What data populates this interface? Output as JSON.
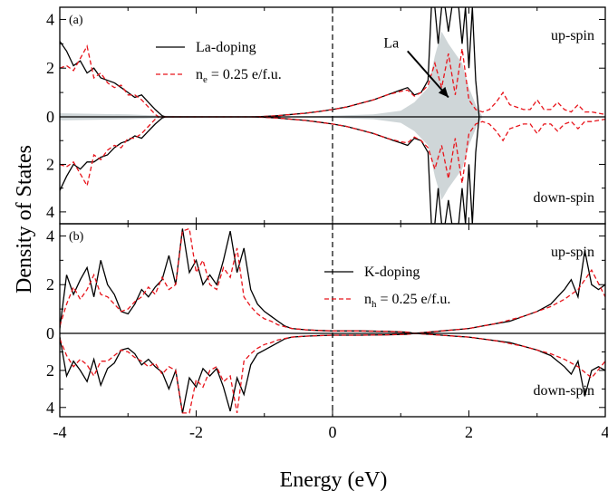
{
  "chart_data": {
    "type": "line",
    "xlabel": "Energy (eV)",
    "ylabel": "Density of States",
    "xlim": [
      -4,
      4
    ],
    "x_ticks": [
      "-4",
      "-2",
      "0",
      "2",
      "4"
    ],
    "y_ticks_top": [
      "4",
      "2",
      "0",
      "2",
      "4"
    ],
    "y_ticks_bottom": [
      "4",
      "2",
      "0",
      "2",
      "4"
    ],
    "fermi_level": 0,
    "colors": {
      "solid": "#000000",
      "dashed": "#e8141b",
      "shade": "#cfd6d8"
    },
    "panels": [
      {
        "label": "(a)",
        "ylim_up": [
          0,
          4.5
        ],
        "ylim_down": [
          0,
          4.5
        ],
        "legend": [
          {
            "name": "La-doping"
          },
          {
            "name_main": "n",
            "name_sub": "e",
            "name_rest": " = 0.25 e/f.u."
          }
        ],
        "annotations": {
          "up": "up-spin",
          "down": "down-spin",
          "arrow_label": "La",
          "arrow_from": [
            1.1,
            2.7
          ],
          "arrow_to": [
            1.7,
            0.8
          ]
        },
        "series": [
          {
            "name": "La-doping",
            "style": "solid",
            "x": [
              -4,
              -3.9,
              -3.8,
              -3.7,
              -3.6,
              -3.5,
              -3.4,
              -3.3,
              -3.2,
              -3.1,
              -3.0,
              -2.9,
              -2.8,
              -2.7,
              -2.6,
              -2.5,
              -2.45,
              -1.2,
              -1.0,
              -0.8,
              -0.6,
              -0.4,
              -0.2,
              0,
              0.2,
              0.4,
              0.6,
              0.8,
              0.9,
              1.0,
              1.1,
              1.2,
              1.3,
              1.4,
              1.45,
              1.5,
              1.55,
              1.6,
              1.65,
              1.7,
              1.75,
              1.8,
              1.85,
              1.9,
              1.95,
              2.0,
              2.05,
              2.1,
              2.15
            ],
            "up": [
              3.1,
              2.7,
              2.1,
              2.3,
              1.8,
              2.0,
              1.6,
              1.5,
              1.4,
              1.2,
              1.0,
              0.8,
              0.9,
              0.6,
              0.3,
              0.05,
              0,
              0,
              0.02,
              0.05,
              0.1,
              0.15,
              0.22,
              0.3,
              0.4,
              0.55,
              0.7,
              0.9,
              1.0,
              1.1,
              1.2,
              0.9,
              1.0,
              1.5,
              4.5,
              4.5,
              3.0,
              4.5,
              4.5,
              3.5,
              4.5,
              4.5,
              4.5,
              3.0,
              4.5,
              2.0,
              4.5,
              1.5,
              0
            ],
            "down": [
              3.1,
              2.5,
              2.0,
              2.2,
              1.9,
              1.9,
              1.7,
              1.6,
              1.3,
              1.1,
              1.0,
              0.8,
              0.9,
              0.6,
              0.3,
              0.05,
              0,
              0,
              0.02,
              0.05,
              0.1,
              0.15,
              0.22,
              0.3,
              0.4,
              0.55,
              0.7,
              0.9,
              1.0,
              1.1,
              1.2,
              0.9,
              1.0,
              1.5,
              4.5,
              4.5,
              3.0,
              4.5,
              4.5,
              3.5,
              4.5,
              4.5,
              4.5,
              3.0,
              4.5,
              2.0,
              4.5,
              1.5,
              0
            ]
          },
          {
            "name_main": "n",
            "name_sub": "e",
            "name_rest": " = 0.25 e/f.u.",
            "style": "dashed",
            "x": [
              -4,
              -3.9,
              -3.8,
              -3.7,
              -3.6,
              -3.5,
              -3.4,
              -3.3,
              -3.2,
              -3.1,
              -3.0,
              -2.9,
              -2.8,
              -2.7,
              -2.6,
              -2.55,
              -1.2,
              -1.0,
              -0.8,
              -0.6,
              -0.4,
              -0.2,
              0,
              0.2,
              0.4,
              0.6,
              0.8,
              1.0,
              1.1,
              1.2,
              1.3,
              1.4,
              1.5,
              1.6,
              1.7,
              1.8,
              1.9,
              2.0,
              2.1,
              2.2,
              2.3,
              2.4,
              2.5,
              2.6,
              2.7,
              2.8,
              2.9,
              3.0,
              3.1,
              3.2,
              3.3,
              3.4,
              3.5,
              3.6,
              3.7,
              3.8,
              3.9,
              4.0
            ],
            "up": [
              2.0,
              2.1,
              1.9,
              2.4,
              2.9,
              1.6,
              1.8,
              1.4,
              1.2,
              1.3,
              0.9,
              0.9,
              0.7,
              0.4,
              0.1,
              0,
              0,
              0.02,
              0.05,
              0.1,
              0.15,
              0.22,
              0.3,
              0.4,
              0.55,
              0.7,
              0.9,
              1.05,
              1.1,
              0.85,
              1.0,
              1.3,
              2.2,
              1.2,
              2.6,
              0.9,
              2.8,
              0.7,
              0.3,
              0.2,
              0.3,
              0.6,
              1.0,
              0.5,
              0.4,
              0.3,
              0.3,
              0.7,
              0.3,
              0.3,
              0.6,
              0.3,
              0.2,
              0.5,
              0.2,
              0.2,
              0.15,
              0.1
            ],
            "down": [
              2.0,
              2.1,
              1.9,
              2.4,
              2.9,
              1.6,
              1.8,
              1.4,
              1.2,
              1.3,
              0.9,
              0.9,
              0.7,
              0.4,
              0.1,
              0,
              0,
              0.02,
              0.05,
              0.1,
              0.15,
              0.22,
              0.3,
              0.4,
              0.55,
              0.7,
              0.9,
              1.05,
              1.1,
              0.85,
              1.0,
              1.3,
              2.2,
              1.2,
              2.6,
              0.9,
              2.8,
              0.7,
              0.3,
              0.2,
              0.3,
              0.6,
              1.0,
              0.5,
              0.4,
              0.3,
              0.3,
              0.7,
              0.3,
              0.3,
              0.6,
              0.3,
              0.2,
              0.5,
              0.2,
              0.2,
              0.15,
              0.1
            ]
          }
        ],
        "shaded": {
          "x": [
            -4,
            -3.0,
            -2.5,
            -1.2,
            0,
            0.6,
            1.0,
            1.2,
            1.4,
            1.5,
            1.6,
            1.7,
            1.8,
            1.9,
            2.0,
            2.1,
            2.2
          ],
          "up": [
            0.15,
            0.1,
            0.05,
            0,
            0.05,
            0.1,
            0.25,
            0.6,
            1.2,
            2.5,
            3.5,
            3.0,
            2.6,
            2.2,
            1.2,
            0.5,
            0
          ],
          "down": [
            0.15,
            0.1,
            0.05,
            0,
            0.05,
            0.1,
            0.25,
            0.6,
            1.2,
            2.5,
            3.5,
            3.0,
            2.6,
            2.2,
            1.2,
            0.5,
            0
          ]
        }
      },
      {
        "label": "(b)",
        "ylim_up": [
          0,
          4.5
        ],
        "ylim_down": [
          0,
          4.5
        ],
        "legend": [
          {
            "name": "K-doping"
          },
          {
            "name_main": "n",
            "name_sub": "h",
            "name_rest": " = 0.25 e/f.u."
          }
        ],
        "annotations": {
          "up": "up-spin",
          "down": "down-spin"
        },
        "series": [
          {
            "name": "K-doping",
            "style": "solid",
            "x": [
              -4,
              -3.9,
              -3.8,
              -3.7,
              -3.6,
              -3.5,
              -3.4,
              -3.3,
              -3.2,
              -3.1,
              -3.0,
              -2.9,
              -2.8,
              -2.7,
              -2.6,
              -2.5,
              -2.4,
              -2.3,
              -2.2,
              -2.1,
              -2.0,
              -1.9,
              -1.8,
              -1.7,
              -1.6,
              -1.5,
              -1.4,
              -1.3,
              -1.2,
              -1.1,
              -1.0,
              -0.9,
              -0.8,
              -0.7,
              -0.6,
              -0.4,
              -0.2,
              0,
              0.4,
              0.8,
              1.1,
              1.2,
              1.4,
              1.6,
              1.8,
              2.0,
              2.2,
              2.4,
              2.6,
              2.8,
              3.0,
              3.2,
              3.4,
              3.5,
              3.6,
              3.7,
              3.8,
              3.9,
              4.0
            ],
            "up": [
              0.2,
              2.4,
              1.6,
              2.2,
              2.7,
              1.5,
              3.0,
              2.0,
              1.6,
              0.9,
              0.8,
              1.2,
              1.8,
              1.5,
              1.9,
              2.2,
              3.2,
              2.0,
              4.3,
              2.5,
              3.0,
              2.0,
              2.4,
              2.0,
              3.0,
              4.2,
              2.5,
              3.5,
              1.8,
              1.2,
              0.9,
              0.7,
              0.5,
              0.3,
              0.2,
              0.15,
              0.12,
              0.1,
              0.1,
              0.08,
              0.05,
              0,
              0.05,
              0.1,
              0.15,
              0.2,
              0.3,
              0.4,
              0.5,
              0.7,
              0.9,
              1.2,
              1.8,
              2.2,
              1.5,
              3.4,
              2.0,
              1.8,
              2.0
            ],
            "down": [
              0.2,
              2.3,
              1.5,
              2.0,
              2.6,
              1.4,
              2.8,
              1.9,
              1.6,
              0.9,
              0.8,
              1.1,
              1.7,
              1.4,
              1.8,
              2.1,
              3.0,
              2.0,
              4.3,
              2.4,
              2.9,
              1.9,
              2.3,
              1.9,
              2.9,
              4.2,
              2.4,
              3.3,
              1.7,
              1.1,
              0.9,
              0.7,
              0.5,
              0.3,
              0.2,
              0.15,
              0.12,
              0.1,
              0.1,
              0.08,
              0.05,
              0,
              0.05,
              0.1,
              0.15,
              0.2,
              0.3,
              0.4,
              0.5,
              0.7,
              0.9,
              1.2,
              1.8,
              2.2,
              1.5,
              3.4,
              2.0,
              1.8,
              2.0
            ]
          },
          {
            "name_main": "n",
            "name_sub": "h",
            "name_rest": " = 0.25 e/f.u.",
            "style": "dashed",
            "x": [
              -4,
              -3.9,
              -3.8,
              -3.7,
              -3.6,
              -3.5,
              -3.4,
              -3.3,
              -3.2,
              -3.1,
              -3.0,
              -2.9,
              -2.8,
              -2.7,
              -2.6,
              -2.5,
              -2.4,
              -2.3,
              -2.2,
              -2.1,
              -2.0,
              -1.9,
              -1.8,
              -1.7,
              -1.6,
              -1.5,
              -1.4,
              -1.3,
              -1.2,
              -1.1,
              -1.0,
              -0.9,
              -0.8,
              -0.6,
              -0.4,
              -0.2,
              0,
              0.4,
              0.8,
              1.1,
              1.2,
              1.4,
              1.6,
              1.8,
              2.0,
              2.2,
              2.4,
              2.6,
              2.8,
              3.0,
              3.2,
              3.4,
              3.6,
              3.8,
              4.0
            ],
            "up": [
              0.3,
              1.2,
              1.9,
              1.4,
              1.8,
              2.4,
              1.6,
              1.5,
              1.2,
              0.9,
              1.0,
              1.3,
              1.5,
              1.9,
              1.6,
              2.3,
              1.8,
              2.0,
              4.2,
              4.3,
              2.5,
              3.0,
              2.0,
              1.8,
              2.7,
              2.3,
              3.5,
              1.5,
              1.1,
              0.8,
              0.6,
              0.5,
              0.35,
              0.2,
              0.15,
              0.12,
              0.1,
              0.1,
              0.08,
              0.05,
              0,
              0.05,
              0.1,
              0.15,
              0.2,
              0.3,
              0.4,
              0.55,
              0.7,
              0.9,
              1.1,
              1.4,
              1.8,
              2.6,
              1.5
            ],
            "down": [
              0.3,
              1.2,
              1.8,
              1.4,
              1.7,
              2.3,
              1.5,
              1.5,
              1.2,
              0.9,
              1.0,
              1.3,
              1.5,
              1.8,
              1.6,
              2.2,
              1.8,
              2.0,
              4.3,
              4.3,
              2.5,
              2.9,
              2.0,
              1.8,
              2.6,
              2.3,
              4.3,
              1.5,
              1.1,
              0.8,
              0.6,
              0.5,
              0.35,
              0.2,
              0.15,
              0.12,
              0.1,
              0.1,
              0.08,
              0.05,
              0,
              0.05,
              0.1,
              0.15,
              0.2,
              0.3,
              0.4,
              0.55,
              0.7,
              0.9,
              1.1,
              1.4,
              1.8,
              2.4,
              1.5
            ]
          }
        ]
      }
    ]
  }
}
